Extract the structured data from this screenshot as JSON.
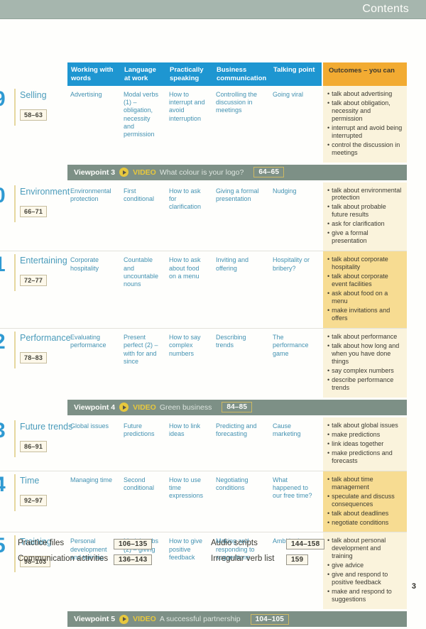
{
  "page": {
    "header_title": "Contents",
    "page_number": "3"
  },
  "colors": {
    "top_bar_sage": "#a6b6ae",
    "table_header_blue": "#1e96d1",
    "outcomes_header_orange": "#f2ab32",
    "outcomes_bg_cream": "#faf3dc",
    "outcomes_bg_highlight": "#f7dc92",
    "viewpoint_bar_green": "#7d9086",
    "accent_yellow": "#e7c83e",
    "unit_number_blue": "#2f9ad2",
    "cell_text_teal": "#4392b2"
  },
  "table": {
    "columns": [
      "Working with words",
      "Language at work",
      "Practically speaking",
      "Business communication",
      "Talking point"
    ],
    "outcomes_header": "Outcomes – you can"
  },
  "units": [
    {
      "number_visible": "9",
      "title": "Selling",
      "pages": "58–63",
      "working_with_words": "Advertising",
      "language_at_work": "Modal verbs (1) – obligation, necessity and permission",
      "practically_speaking": "How to interrupt and avoid interruption",
      "business_communication": "Controlling the discussion in meetings",
      "talking_point": "Going viral",
      "outcomes": [
        "talk about advertising",
        "talk about obligation, necessity and permission",
        "interrupt and avoid being interrupted",
        "control the discussion in meetings"
      ],
      "highlighted": false
    },
    {
      "number_visible": "0",
      "title": "Environment",
      "pages": "66–71",
      "working_with_words": "Environmental protection",
      "language_at_work": "First conditional",
      "practically_speaking": "How to ask for clarification",
      "business_communication": "Giving a formal presentation",
      "talking_point": "Nudging",
      "outcomes": [
        "talk about environmental protection",
        "talk about probable future results",
        "ask for clarification",
        "give a formal presentation"
      ],
      "highlighted": false
    },
    {
      "number_visible": "1",
      "title": "Entertaining",
      "pages": "72–77",
      "working_with_words": "Corporate hospitality",
      "language_at_work": "Countable and uncountable nouns",
      "practically_speaking": "How to ask about food on a menu",
      "business_communication": "Inviting and offering",
      "talking_point": "Hospitality or bribery?",
      "outcomes": [
        "talk about corporate hospitality",
        "talk about corporate event facilities",
        "ask about food on a menu",
        "make invitations and offers"
      ],
      "highlighted": true
    },
    {
      "number_visible": "2",
      "title": "Performance",
      "pages": "78–83",
      "working_with_words": "Evaluating performance",
      "language_at_work": "Present perfect (2) – with for and since",
      "practically_speaking": "How to say complex numbers",
      "business_communication": "Describing trends",
      "talking_point": "The performance game",
      "outcomes": [
        "talk about performance",
        "talk about how long and when you have done things",
        "say complex numbers",
        "describe performance trends"
      ],
      "highlighted": false
    },
    {
      "number_visible": "3",
      "title": "Future trends",
      "pages": "86–91",
      "working_with_words": "Global issues",
      "language_at_work": "Future predictions",
      "practically_speaking": "How to link ideas",
      "business_communication": "Predicting and forecasting",
      "talking_point": "Cause marketing",
      "outcomes": [
        "talk about global issues",
        "make predictions",
        "link ideas together",
        "make predictions and forecasts"
      ],
      "highlighted": false
    },
    {
      "number_visible": "4",
      "title": "Time",
      "pages": "92–97",
      "working_with_words": "Managing time",
      "language_at_work": "Second conditional",
      "practically_speaking": "How to use time expressions",
      "business_communication": "Negotiating conditions",
      "talking_point": "What happened to our free time?",
      "outcomes": [
        "talk about time management",
        "speculate and discuss consequences",
        "talk about deadlines",
        "negotiate conditions"
      ],
      "highlighted": true
    },
    {
      "number_visible": "5",
      "title": "Training",
      "pages": "98–103",
      "working_with_words": "Personal development and training",
      "language_at_work": "Modal verbs (2) – giving advice",
      "practically_speaking": "How to give positive feedback",
      "business_communication": "Making and responding to suggestions",
      "talking_point": "Ambition!",
      "outcomes": [
        "talk about personal development and training",
        "give advice",
        "give and respond to positive feedback",
        "make and respond to suggestions"
      ],
      "highlighted": false
    }
  ],
  "viewpoints": [
    {
      "name": "Viewpoint 3",
      "video": "VIDEO",
      "title": "What colour is your logo?",
      "pages": "64–65"
    },
    {
      "name": "Viewpoint 4",
      "video": "VIDEO",
      "title": "Green business",
      "pages": "84–85"
    },
    {
      "name": "Viewpoint 5",
      "video": "VIDEO",
      "title": "A successful partnership",
      "pages": "104–105"
    }
  ],
  "sequence": [
    {
      "type": "unit",
      "index": 0
    },
    {
      "type": "viewpoint",
      "index": 0
    },
    {
      "type": "unit",
      "index": 1
    },
    {
      "type": "unit",
      "index": 2
    },
    {
      "type": "unit",
      "index": 3
    },
    {
      "type": "viewpoint",
      "index": 1
    },
    {
      "type": "unit",
      "index": 4
    },
    {
      "type": "unit",
      "index": 5
    },
    {
      "type": "unit",
      "index": 6
    },
    {
      "type": "viewpoint",
      "index": 2
    }
  ],
  "footer": {
    "links": [
      {
        "label": "Practice files",
        "pages": "106–135"
      },
      {
        "label": "Communication activities",
        "pages": "136–143"
      },
      {
        "label": "Audio scripts",
        "pages": "144–158"
      },
      {
        "label": "Irrregular verb list",
        "pages": "159"
      }
    ]
  }
}
